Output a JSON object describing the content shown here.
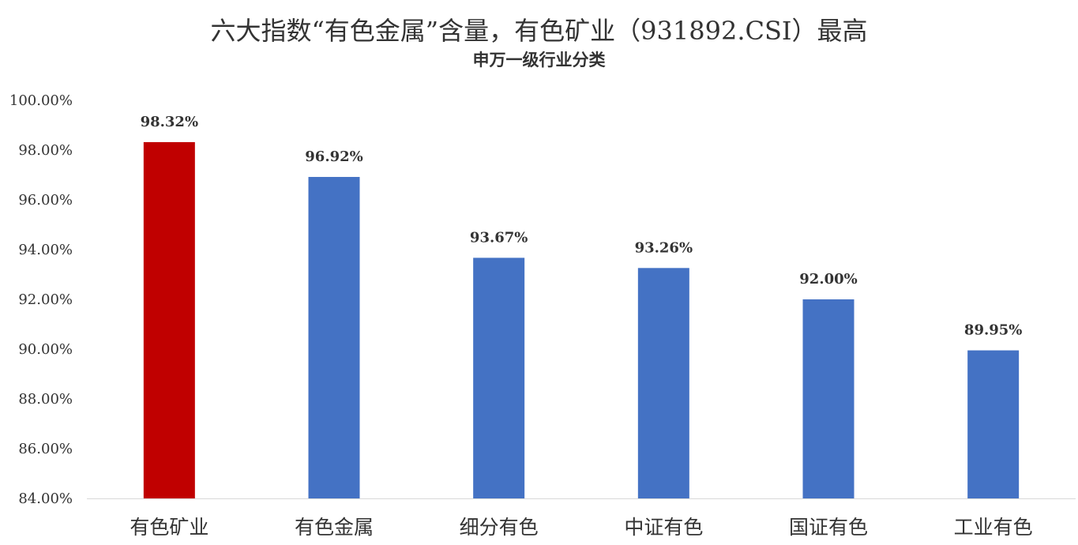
{
  "chart_data": {
    "type": "bar",
    "title": "六大指数“有色金属”含量，有色矿业（931892.CSI）最高",
    "subtitle": "申万一级行业分类",
    "categories": [
      "有色矿业",
      "有色金属",
      "细分有色",
      "中证有色",
      "国证有色",
      "工业有色"
    ],
    "values": [
      98.32,
      96.92,
      93.67,
      93.26,
      92.0,
      89.95
    ],
    "data_labels": [
      "98.32%",
      "96.92%",
      "93.67%",
      "93.26%",
      "92.00%",
      "89.95%"
    ],
    "ylim": [
      84,
      100
    ],
    "yticks": [
      "84.00%",
      "86.00%",
      "88.00%",
      "90.00%",
      "92.00%",
      "94.00%",
      "96.00%",
      "98.00%",
      "100.00%"
    ],
    "grid": false,
    "legend": "none",
    "colors": {
      "highlight": "#C00000",
      "default": "#4472C4",
      "axis": "#D9D9D9"
    }
  }
}
